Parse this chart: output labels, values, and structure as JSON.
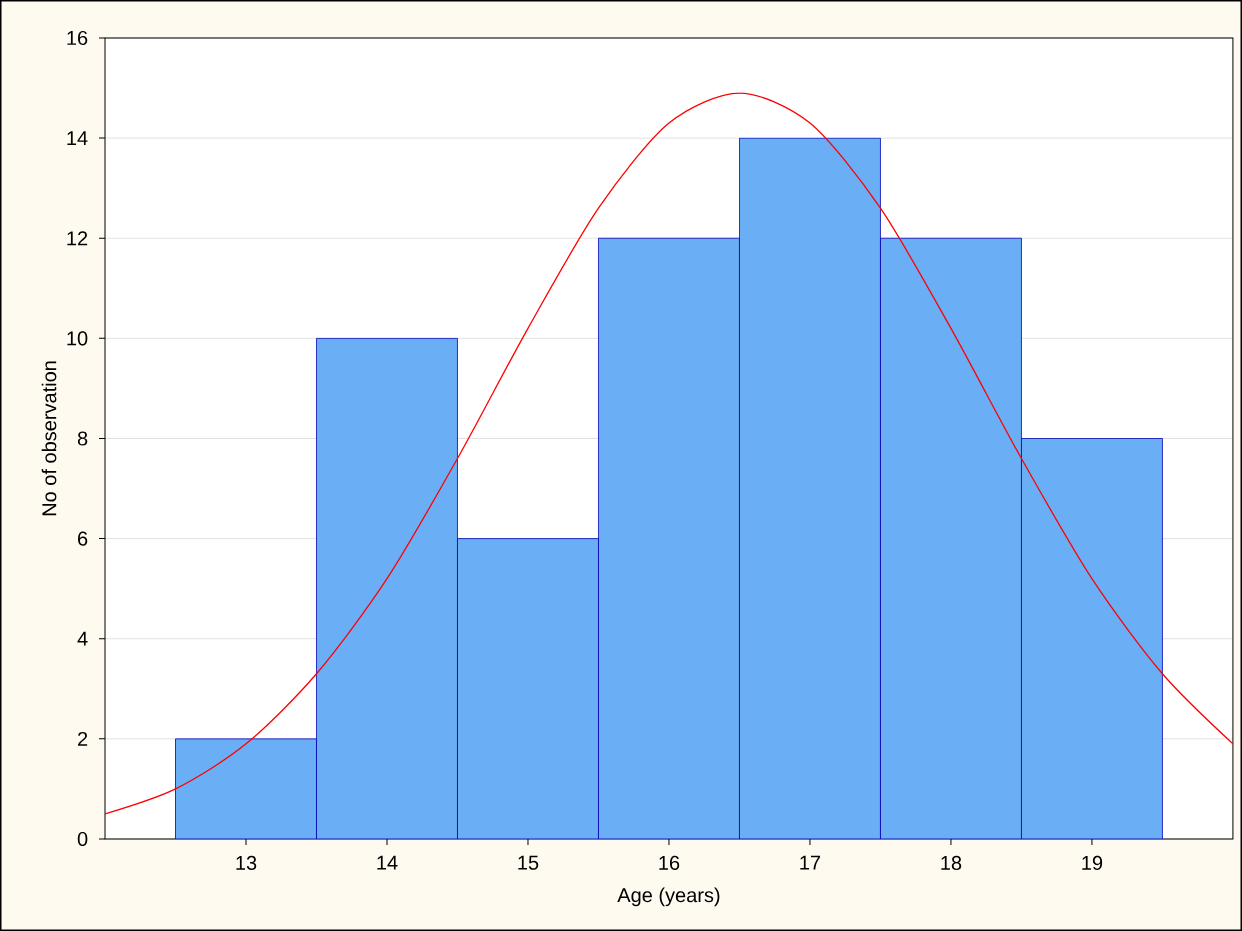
{
  "chart_data": {
    "type": "histogram",
    "xlabel": "Age (years)",
    "ylabel": "No of observation",
    "bins": [
      12.5,
      13.5,
      14.5,
      15.5,
      16.5,
      17.5,
      18.5,
      19.5
    ],
    "values": [
      2,
      10,
      6,
      12,
      14,
      12,
      8
    ],
    "color": "#6aaef6",
    "xlim": [
      12,
      20
    ],
    "ylim": [
      0,
      16
    ],
    "xticks": [
      13,
      14,
      15,
      16,
      17,
      18,
      19
    ],
    "yticks": [
      0,
      2,
      4,
      6,
      8,
      10,
      12,
      14,
      16
    ],
    "grid": "y",
    "series": [
      {
        "type": "line",
        "color": "#ff0000",
        "x": [
          12,
          12.5,
          13,
          13.5,
          14,
          14.5,
          15,
          15.5,
          16,
          16.5,
          17,
          17.5,
          18,
          18.5,
          19,
          19.5,
          20
        ],
        "values": [
          0.5,
          1.0,
          1.9,
          3.3,
          5.2,
          7.6,
          10.2,
          12.6,
          14.3,
          14.9,
          14.3,
          12.6,
          10.2,
          7.6,
          5.2,
          3.3,
          1.9
        ]
      }
    ]
  }
}
